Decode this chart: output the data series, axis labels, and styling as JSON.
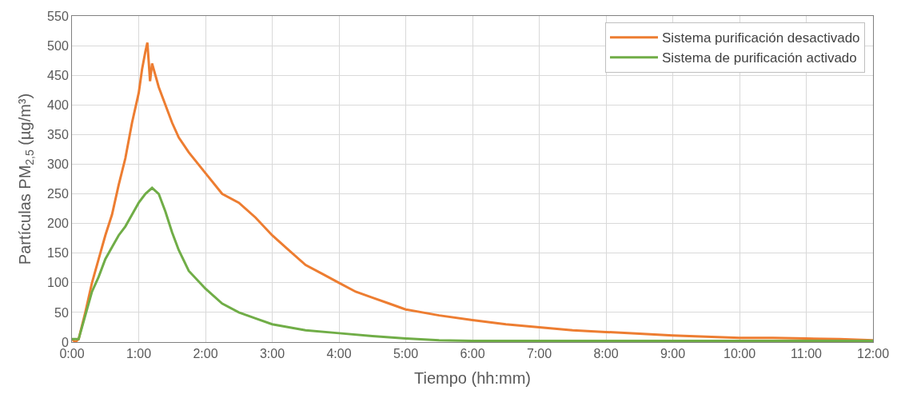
{
  "chart_data": {
    "type": "line",
    "xlabel": "Tiempo (hh:mm)",
    "ylabel": "Partículas PM$_{2,5}$ (µg/m³)",
    "xlim": [
      0,
      12
    ],
    "xticks": [
      {
        "value": 0,
        "label": "0:00"
      },
      {
        "value": 1,
        "label": "1:00"
      },
      {
        "value": 2,
        "label": "2:00"
      },
      {
        "value": 3,
        "label": "3:00"
      },
      {
        "value": 4,
        "label": "4:00"
      },
      {
        "value": 5,
        "label": "5:00"
      },
      {
        "value": 6,
        "label": "6:00"
      },
      {
        "value": 7,
        "label": "7:00"
      },
      {
        "value": 8,
        "label": "8:00"
      },
      {
        "value": 9,
        "label": "9:00"
      },
      {
        "value": 10,
        "label": "10:00"
      },
      {
        "value": 11,
        "label": "11:00"
      },
      {
        "value": 12,
        "label": "12:00"
      }
    ],
    "ylim": [
      0,
      550
    ],
    "yticks": [
      0,
      50,
      100,
      150,
      200,
      250,
      300,
      350,
      400,
      450,
      500,
      550
    ],
    "grid": true,
    "legend": "top right",
    "marker": "none",
    "line_style": "solid",
    "series": [
      {
        "name": "Sistema purificación desactivado",
        "color": "#ed7d31",
        "x": [
          0,
          0.05,
          0.1,
          0.2,
          0.3,
          0.4,
          0.5,
          0.6,
          0.7,
          0.8,
          0.9,
          1.0,
          1.05,
          1.1,
          1.13,
          1.17,
          1.2,
          1.25,
          1.3,
          1.4,
          1.5,
          1.6,
          1.75,
          2.0,
          2.25,
          2.5,
          2.75,
          3.0,
          3.25,
          3.5,
          3.75,
          4.0,
          4.25,
          4.5,
          4.75,
          5.0,
          5.5,
          6.0,
          6.5,
          7.0,
          7.5,
          8.0,
          8.5,
          9.0,
          9.5,
          10.0,
          10.5,
          11.0,
          11.5,
          12
        ],
        "values": [
          5,
          0,
          5,
          50,
          100,
          140,
          180,
          215,
          265,
          310,
          370,
          420,
          460,
          490,
          505,
          440,
          470,
          450,
          430,
          400,
          370,
          345,
          320,
          285,
          250,
          235,
          210,
          180,
          155,
          130,
          115,
          100,
          85,
          75,
          65,
          55,
          45,
          37,
          30,
          25,
          20,
          17,
          14,
          11,
          9,
          7,
          7,
          6,
          5,
          3
        ]
      },
      {
        "name": "Sistema de purificación activado",
        "color": "#70ad47",
        "x": [
          0,
          0.1,
          0.2,
          0.3,
          0.4,
          0.5,
          0.6,
          0.7,
          0.8,
          0.9,
          1.0,
          1.1,
          1.2,
          1.3,
          1.4,
          1.5,
          1.6,
          1.75,
          2.0,
          2.25,
          2.5,
          2.75,
          3.0,
          3.5,
          4.0,
          4.5,
          5.0,
          5.5,
          6.0,
          7,
          8,
          9,
          10,
          12
        ],
        "values": [
          5,
          5,
          45,
          85,
          110,
          140,
          160,
          180,
          195,
          215,
          235,
          250,
          260,
          250,
          220,
          185,
          155,
          120,
          90,
          65,
          50,
          40,
          30,
          20,
          15,
          10,
          6,
          3,
          2,
          2,
          2,
          2,
          2,
          2
        ]
      }
    ]
  }
}
